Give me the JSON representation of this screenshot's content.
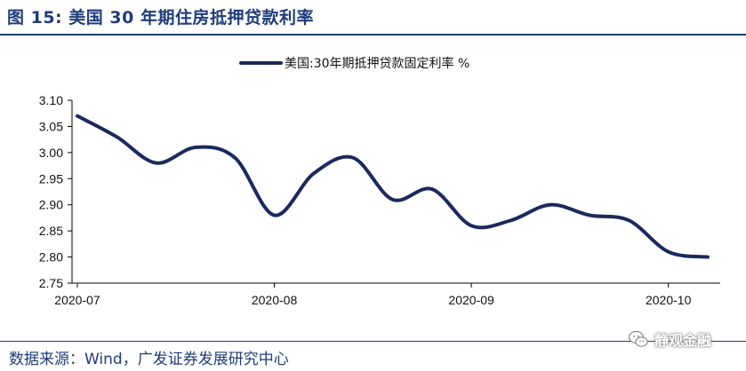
{
  "header": {
    "title": "图 15:  美国 30 年期住房抵押贷款利率"
  },
  "footer": {
    "source": "数据来源：Wind，广发证券发展研究中心",
    "watermark": "静观金融",
    "watermark_icon": "wechat-icon"
  },
  "colors": {
    "series": "#1a2a5e",
    "accent": "#1f3d7a"
  },
  "chart_data": {
    "type": "line",
    "title": "",
    "xlabel": "",
    "ylabel": "",
    "ylim": [
      2.75,
      3.1
    ],
    "yticks": [
      "3.10",
      "3.05",
      "3.00",
      "2.95",
      "2.90",
      "2.85",
      "2.80",
      "2.75"
    ],
    "ytick_values": [
      3.1,
      3.05,
      3.0,
      2.95,
      2.9,
      2.85,
      2.8,
      2.75
    ],
    "xlim": [
      "2020-07-02",
      "2020-10-22"
    ],
    "xticks": [
      "2020-07",
      "2020-08",
      "2020-09",
      "2020-10"
    ],
    "xtick_dates": [
      "2020-07-02",
      "2020-08-06",
      "2020-09-10",
      "2020-10-15"
    ],
    "grid": false,
    "legend": {
      "placement": "top-center"
    },
    "series": [
      {
        "name": "美国:30年期抵押贷款固定利率 %",
        "x": [
          "2020-07-02",
          "2020-07-09",
          "2020-07-16",
          "2020-07-23",
          "2020-07-30",
          "2020-08-06",
          "2020-08-13",
          "2020-08-20",
          "2020-08-27",
          "2020-09-03",
          "2020-09-10",
          "2020-09-17",
          "2020-09-24",
          "2020-10-01",
          "2020-10-08",
          "2020-10-15",
          "2020-10-22"
        ],
        "values": [
          3.07,
          3.03,
          2.98,
          3.01,
          2.99,
          2.88,
          2.96,
          2.99,
          2.91,
          2.93,
          2.86,
          2.87,
          2.9,
          2.88,
          2.87,
          2.81,
          2.8
        ]
      }
    ]
  }
}
